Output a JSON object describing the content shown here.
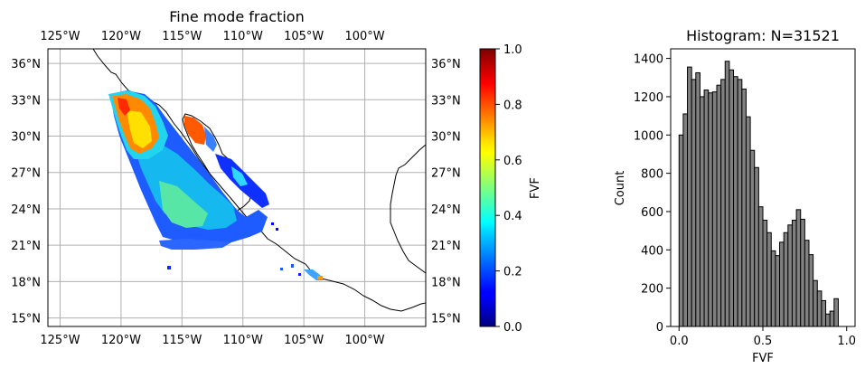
{
  "chart_data": [
    {
      "type": "heatmap",
      "title": "Fine mode fraction",
      "lon_ticks": [
        {
          "value": -125,
          "label": "125°W"
        },
        {
          "value": -120,
          "label": "120°W"
        },
        {
          "value": -115,
          "label": "115°W"
        },
        {
          "value": -110,
          "label": "110°W"
        },
        {
          "value": -105,
          "label": "105°W"
        },
        {
          "value": -100,
          "label": "100°W"
        }
      ],
      "lat_ticks": [
        {
          "value": 36,
          "label": "36°N"
        },
        {
          "value": 33,
          "label": "33°N"
        },
        {
          "value": 30,
          "label": "30°N"
        },
        {
          "value": 27,
          "label": "27°N"
        },
        {
          "value": 24,
          "label": "24°N"
        },
        {
          "value": 21,
          "label": "21°N"
        },
        {
          "value": 18,
          "label": "18°N"
        },
        {
          "value": 15,
          "label": "15°N"
        }
      ],
      "lon_range": [
        -126,
        -95
      ],
      "lat_range": [
        14.3,
        37.2
      ],
      "grid": true,
      "colorbar": {
        "label": "FVF",
        "range": [
          0,
          1
        ],
        "ticks": [
          "0.0",
          "0.2",
          "0.4",
          "0.6",
          "0.8",
          "1.0"
        ],
        "colormap": "jet"
      }
    },
    {
      "type": "bar",
      "title": "Histogram: N=31521",
      "xlabel": "FVF",
      "ylabel": "Count",
      "xlim": [
        -0.05,
        1.05
      ],
      "ylim": [
        0,
        1450
      ],
      "x_ticks": [
        "0.0",
        "0.5",
        "1.0"
      ],
      "y_ticks": [
        "0",
        "200",
        "400",
        "600",
        "800",
        "1000",
        "1200",
        "1400"
      ],
      "bin_width": 0.025,
      "bin_start": 0.0,
      "values": [
        1000,
        1110,
        1355,
        1290,
        1325,
        1200,
        1235,
        1220,
        1225,
        1260,
        1290,
        1385,
        1340,
        1305,
        1290,
        1240,
        1095,
        920,
        830,
        625,
        555,
        490,
        395,
        370,
        440,
        490,
        530,
        555,
        610,
        560,
        450,
        375,
        240,
        185,
        135,
        65,
        80,
        145
      ],
      "bar_color": "#808080",
      "edge_color": "#000000"
    }
  ]
}
